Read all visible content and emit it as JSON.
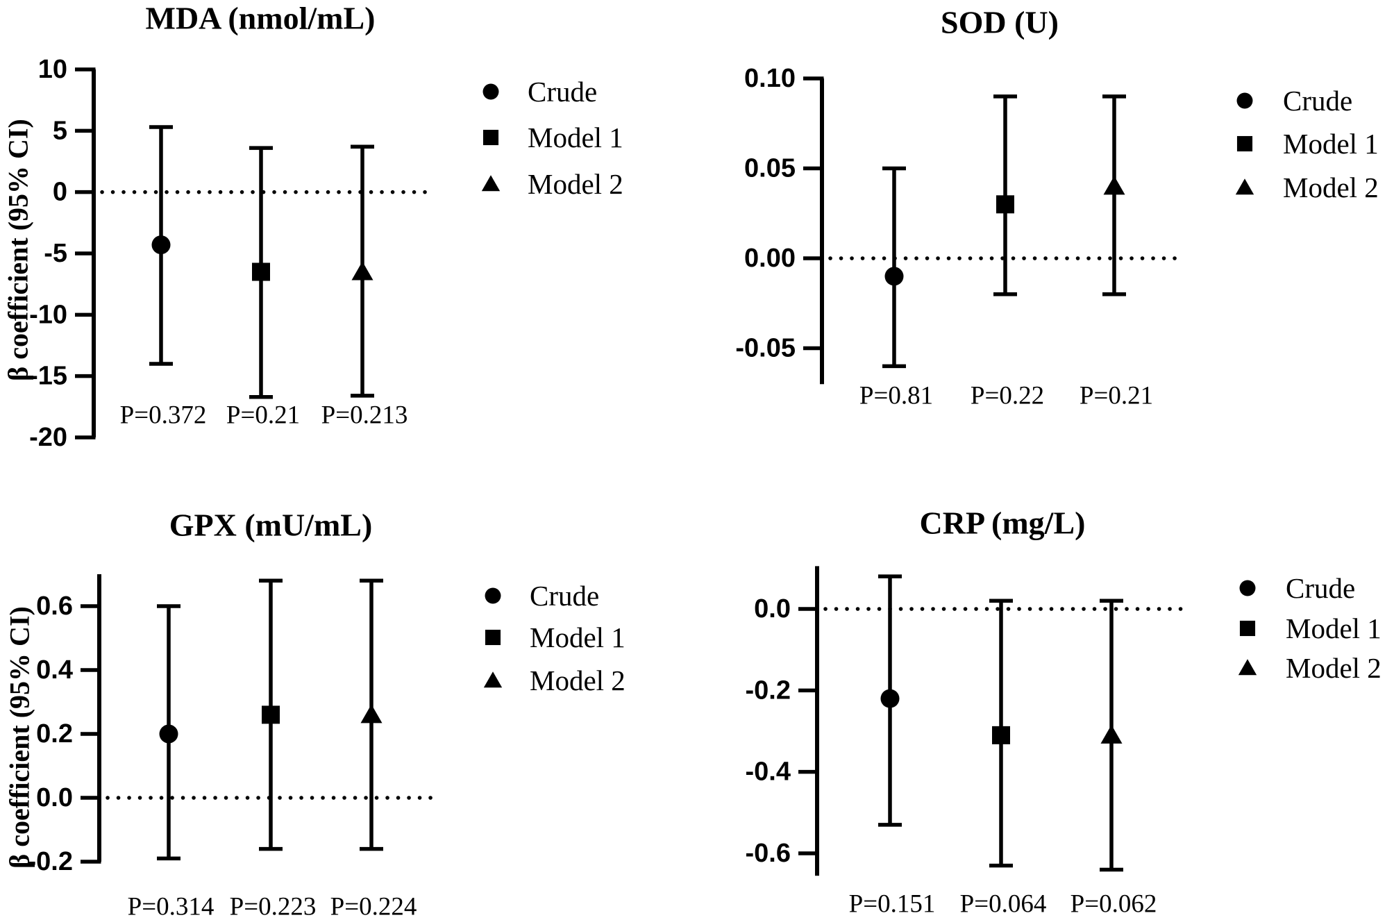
{
  "figure": {
    "background_color": "#ffffff",
    "ink_color": "#000000",
    "description_labels": {
      "y_axis_title": "β coefficient (95% CI)"
    }
  },
  "chart_data": [
    {
      "id": "mda",
      "type": "scatter",
      "title": "MDA (nmol/mL)",
      "ylabel": "β coefficient (95% CI)",
      "yticks": [
        10,
        5,
        0,
        -5,
        -10,
        -15,
        -20
      ],
      "ytick_labels": [
        "10",
        "5",
        "0",
        "-5",
        "-10",
        "-15",
        "-20"
      ],
      "ylim": [
        -20,
        10
      ],
      "zero_line": true,
      "legend_position": "right",
      "series": [
        {
          "name": "Crude",
          "marker": "circle",
          "value": -4.3,
          "ci_high": 5.3,
          "ci_low": -14.0,
          "p_label": "P=0.372"
        },
        {
          "name": "Model 1",
          "marker": "square",
          "value": -6.5,
          "ci_high": 3.6,
          "ci_low": -16.7,
          "p_label": "P=0.21"
        },
        {
          "name": "Model 2",
          "marker": "triangle",
          "value": -6.5,
          "ci_high": 3.7,
          "ci_low": -16.6,
          "p_label": "P=0.213"
        }
      ]
    },
    {
      "id": "sod",
      "type": "scatter",
      "title": "SOD (U)",
      "ylabel": null,
      "yticks": [
        0.1,
        0.05,
        0.0,
        -0.05
      ],
      "ytick_labels": [
        "0.10",
        "0.05",
        "0.00",
        "-0.05"
      ],
      "ylim": [
        -0.07,
        0.1
      ],
      "zero_line": true,
      "legend_position": "right",
      "series": [
        {
          "name": "Crude",
          "marker": "circle",
          "value": -0.01,
          "ci_high": 0.05,
          "ci_low": -0.06,
          "p_label": "P=0.81"
        },
        {
          "name": "Model 1",
          "marker": "square",
          "value": 0.03,
          "ci_high": 0.09,
          "ci_low": -0.02,
          "p_label": "P=0.22"
        },
        {
          "name": "Model 2",
          "marker": "triangle",
          "value": 0.04,
          "ci_high": 0.09,
          "ci_low": -0.02,
          "p_label": "P=0.21"
        }
      ]
    },
    {
      "id": "gpx",
      "type": "scatter",
      "title": "GPX (mU/mL)",
      "ylabel": "β coefficient (95% CI)",
      "yticks": [
        0.6,
        0.4,
        0.2,
        0.0,
        -0.2
      ],
      "ytick_labels": [
        "0.6",
        "0.4",
        "0.2",
        "0.0",
        "-0.2"
      ],
      "ylim": [
        -0.2,
        0.7
      ],
      "zero_line": true,
      "legend_position": "right",
      "series": [
        {
          "name": "Crude",
          "marker": "circle",
          "value": 0.2,
          "ci_high": 0.6,
          "ci_low": -0.19,
          "p_label": "P=0.314"
        },
        {
          "name": "Model 1",
          "marker": "square",
          "value": 0.26,
          "ci_high": 0.68,
          "ci_low": -0.16,
          "p_label": "P=0.223"
        },
        {
          "name": "Model 2",
          "marker": "triangle",
          "value": 0.26,
          "ci_high": 0.68,
          "ci_low": -0.16,
          "p_label": "P=0.224"
        }
      ]
    },
    {
      "id": "crp",
      "type": "scatter",
      "title": "CRP (mg/L)",
      "ylabel": null,
      "yticks": [
        0.0,
        -0.2,
        -0.4,
        -0.6
      ],
      "ytick_labels": [
        "0.0",
        "-0.2",
        "-0.4",
        "-0.6"
      ],
      "ylim": [
        -0.655,
        0.105
      ],
      "zero_line": true,
      "legend_position": "right",
      "series": [
        {
          "name": "Crude",
          "marker": "circle",
          "value": -0.22,
          "ci_high": 0.08,
          "ci_low": -0.53,
          "p_label": "P=0.151"
        },
        {
          "name": "Model 1",
          "marker": "square",
          "value": -0.31,
          "ci_high": 0.02,
          "ci_low": -0.63,
          "p_label": "P=0.064"
        },
        {
          "name": "Model 2",
          "marker": "triangle",
          "value": -0.31,
          "ci_high": 0.02,
          "ci_low": -0.64,
          "p_label": "P=0.062"
        }
      ]
    }
  ]
}
